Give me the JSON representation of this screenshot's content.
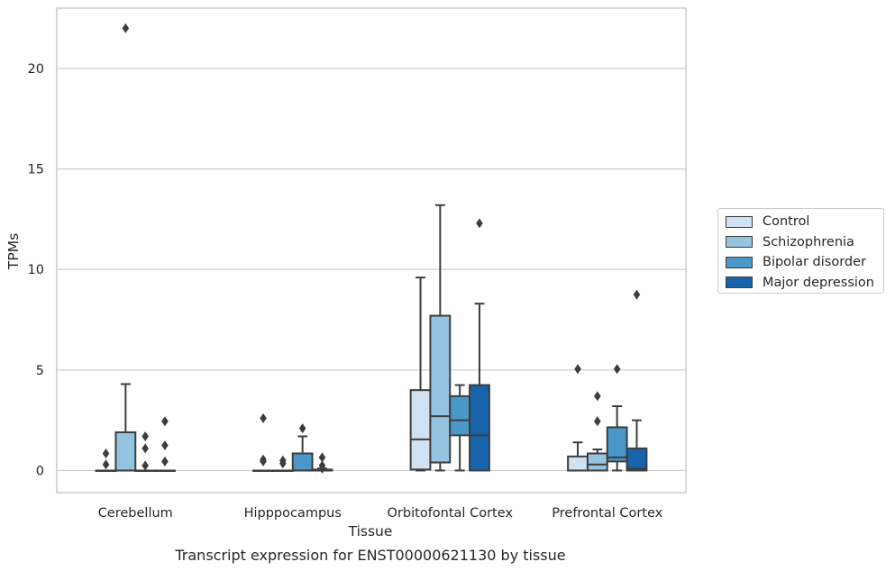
{
  "chart_data": {
    "type": "box",
    "title": "Transcript expression for ENST00000621130 by tissue",
    "xlabel": "Tissue",
    "ylabel": "TPMs",
    "ylim": [
      -1.1,
      23.0
    ],
    "yticks": [
      0,
      5,
      10,
      15,
      20
    ],
    "grid": "horizontal",
    "legend_position": "right",
    "categories": [
      "Cerebellum",
      "Hipppocampus",
      "Orbitofontal Cortex",
      "Prefrontal Cortex"
    ],
    "series": [
      {
        "name": "Control",
        "color": "#d0e1f2",
        "boxes": [
          {
            "whisker_low": 0,
            "q1": 0,
            "median": 0,
            "q3": 0,
            "whisker_high": 0,
            "outliers": [
              0.85,
              0.3
            ]
          },
          {
            "whisker_low": 0,
            "q1": 0,
            "median": 0,
            "q3": 0,
            "whisker_high": 0,
            "outliers": [
              2.6,
              0.55,
              0.45
            ]
          },
          {
            "whisker_low": 0,
            "q1": 0.05,
            "median": 1.55,
            "q3": 4.0,
            "whisker_high": 9.6,
            "outliers": []
          },
          {
            "whisker_low": 0,
            "q1": 0,
            "median": 0,
            "q3": 0.7,
            "whisker_high": 1.4,
            "outliers": [
              5.05
            ]
          }
        ]
      },
      {
        "name": "Schizophrenia",
        "color": "#94c4df",
        "boxes": [
          {
            "whisker_low": 0,
            "q1": 0,
            "median": 0,
            "q3": 1.9,
            "whisker_high": 4.3,
            "outliers": [
              22.0
            ]
          },
          {
            "whisker_low": 0,
            "q1": 0,
            "median": 0,
            "q3": 0,
            "whisker_high": 0,
            "outliers": [
              0.5,
              0.35
            ]
          },
          {
            "whisker_low": 0,
            "q1": 0.4,
            "median": 2.7,
            "q3": 7.7,
            "whisker_high": 13.2,
            "outliers": []
          },
          {
            "whisker_low": 0,
            "q1": 0,
            "median": 0.3,
            "q3": 0.85,
            "whisker_high": 1.05,
            "outliers": [
              3.7,
              2.45
            ]
          }
        ]
      },
      {
        "name": "Bipolar disorder",
        "color": "#4a98c9",
        "boxes": [
          {
            "whisker_low": 0,
            "q1": 0,
            "median": 0,
            "q3": 0,
            "whisker_high": 0,
            "outliers": [
              1.7,
              1.1,
              0.25
            ]
          },
          {
            "whisker_low": 0,
            "q1": 0,
            "median": 0,
            "q3": 0.85,
            "whisker_high": 1.7,
            "outliers": [
              2.1
            ]
          },
          {
            "whisker_low": 0,
            "q1": 1.75,
            "median": 2.5,
            "q3": 3.7,
            "whisker_high": 4.25,
            "outliers": []
          },
          {
            "whisker_low": 0,
            "q1": 0.45,
            "median": 0.65,
            "q3": 2.15,
            "whisker_high": 3.2,
            "outliers": [
              5.05
            ]
          }
        ]
      },
      {
        "name": "Major depression",
        "color": "#1764ab",
        "boxes": [
          {
            "whisker_low": 0,
            "q1": 0,
            "median": 0,
            "q3": 0,
            "whisker_high": 0,
            "outliers": [
              2.45,
              1.25,
              0.45
            ]
          },
          {
            "whisker_low": 0,
            "q1": 0,
            "median": 0,
            "q3": 0.05,
            "whisker_high": 0.1,
            "outliers": [
              0.65,
              0.25,
              0.1
            ]
          },
          {
            "whisker_low": 0,
            "q1": 0,
            "median": 1.75,
            "q3": 4.25,
            "whisker_high": 8.3,
            "outliers": [
              12.3
            ]
          },
          {
            "whisker_low": 0,
            "q1": 0,
            "median": 0.1,
            "q3": 1.1,
            "whisker_high": 2.5,
            "outliers": [
              8.75
            ]
          }
        ]
      }
    ]
  }
}
